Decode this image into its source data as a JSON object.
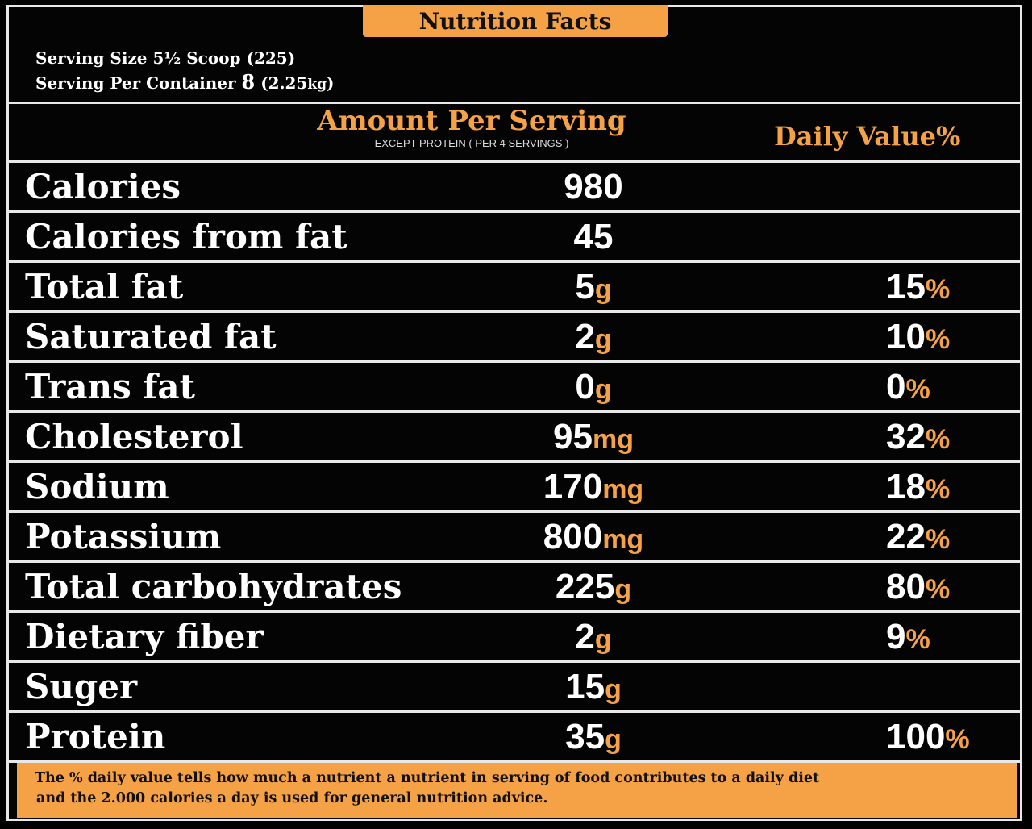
{
  "title": "Nutrition Facts",
  "serving": {
    "size_label": "Serving Size 5½ Scoop (225)",
    "per_container_prefix": "Serving Per Container",
    "per_container_count": "8",
    "per_container_weight_open": "(2.25",
    "per_container_weight_unit": "kg",
    "per_container_weight_close": ")"
  },
  "header": {
    "amount": "Amount Per Serving",
    "except": "EXCEPT PROTEIN ( PER 4 SERVINGS )",
    "daily_value": "Daily Value%"
  },
  "rows": [
    {
      "label": "Calories",
      "amount": "980",
      "amount_unit": "",
      "dv": "",
      "dv_unit": ""
    },
    {
      "label": "Calories from fat",
      "amount": "45",
      "amount_unit": "",
      "dv": "",
      "dv_unit": ""
    },
    {
      "label": "Total fat",
      "amount": "5",
      "amount_unit": "g",
      "dv": "15",
      "dv_unit": "%"
    },
    {
      "label": "Saturated fat",
      "amount": "2",
      "amount_unit": "g",
      "dv": "10",
      "dv_unit": "%"
    },
    {
      "label": "Trans fat",
      "amount": "0",
      "amount_unit": "g",
      "dv": "0",
      "dv_unit": "%"
    },
    {
      "label": "Cholesterol",
      "amount": "95",
      "amount_unit": "mg",
      "dv": "32",
      "dv_unit": "%"
    },
    {
      "label": "Sodium",
      "amount": "170",
      "amount_unit": "mg",
      "dv": "18",
      "dv_unit": "%"
    },
    {
      "label": "Potassium",
      "amount": "800",
      "amount_unit": "mg",
      "dv": "22",
      "dv_unit": "%"
    },
    {
      "label": "Total carbohydrates",
      "amount": "225",
      "amount_unit": "g",
      "dv": "80",
      "dv_unit": "%"
    },
    {
      "label": "Dietary fiber",
      "amount": "2",
      "amount_unit": "g",
      "dv": "9",
      "dv_unit": "%"
    },
    {
      "label": "Suger",
      "amount": "15",
      "amount_unit": "g",
      "dv": "",
      "dv_unit": ""
    },
    {
      "label": "Protein",
      "amount": "35",
      "amount_unit": "g",
      "dv": "100",
      "dv_unit": "%"
    }
  ],
  "footnote": {
    "line1": "The % daily value tells how much a nutrient a nutrient in serving of food contributes to a daily diet",
    "line2": "and the 2.000 calories a day is used for general nutrition advice."
  },
  "colors": {
    "accent": "#f5a146",
    "background": "#000000",
    "border": "#e8e8e8",
    "text": "#ffffff"
  }
}
